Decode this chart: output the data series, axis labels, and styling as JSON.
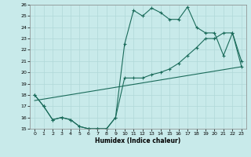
{
  "xlabel": "Humidex (Indice chaleur)",
  "bg_color": "#c8eaea",
  "grid_color": "#b0d8d8",
  "line_color": "#1a6b5a",
  "xlim": [
    -0.5,
    23.5
  ],
  "ylim": [
    15,
    26
  ],
  "xticks": [
    0,
    1,
    2,
    3,
    4,
    5,
    6,
    7,
    8,
    9,
    10,
    11,
    12,
    13,
    14,
    15,
    16,
    17,
    18,
    19,
    20,
    21,
    22,
    23
  ],
  "yticks": [
    15,
    16,
    17,
    18,
    19,
    20,
    21,
    22,
    23,
    24,
    25,
    26
  ],
  "line1_x": [
    0,
    1,
    2,
    3,
    4,
    5,
    6,
    7,
    8,
    9,
    10,
    11,
    12,
    13,
    14,
    15,
    16,
    17,
    18,
    19,
    20,
    21,
    22,
    23
  ],
  "line1_y": [
    18,
    17,
    15.8,
    16,
    15.8,
    15.2,
    15,
    15,
    15,
    16,
    22.5,
    25.5,
    25,
    25.7,
    25.3,
    24.7,
    24.7,
    25.8,
    24,
    23.5,
    23.5,
    21.5,
    23.5,
    21
  ],
  "line2_x": [
    0,
    1,
    2,
    3,
    4,
    5,
    6,
    7,
    8,
    9,
    10,
    11,
    12,
    13,
    14,
    15,
    16,
    17,
    18,
    19,
    20,
    21,
    22,
    23
  ],
  "line2_y": [
    18,
    17,
    15.8,
    16,
    15.8,
    15.2,
    15,
    15,
    15,
    16,
    19.5,
    19.5,
    19.5,
    19.8,
    20,
    20.3,
    20.8,
    21.5,
    22.2,
    23,
    23,
    23.5,
    23.5,
    20.5
  ],
  "line3_x": [
    0,
    23
  ],
  "line3_y": [
    17.5,
    20.5
  ]
}
